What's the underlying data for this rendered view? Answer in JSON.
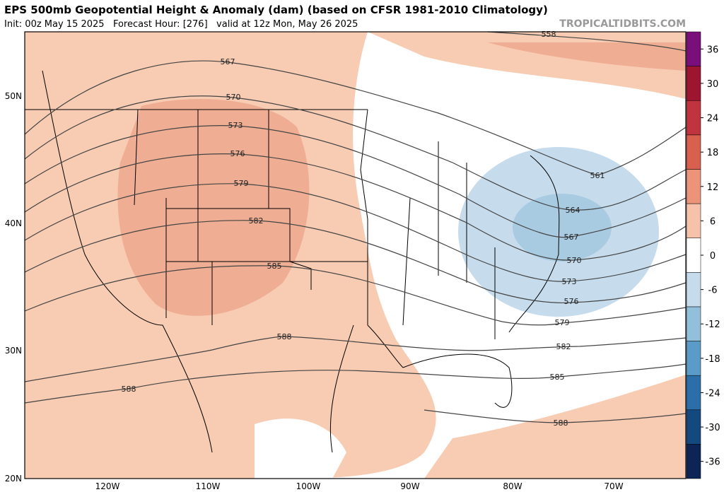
{
  "header": {
    "title": "EPS 500mb Geopotential Height & Anomaly (dam) (based on CFSR 1981-2010 Climatology)",
    "subtitle": "Init: 00z May 15 2025   Forecast Hour: [276]   valid at 12z Mon, May 26 2025",
    "watermark": "TROPICALTIDBITS.COM"
  },
  "map": {
    "lat_labels": [
      "50N",
      "40N",
      "30N",
      "20N"
    ],
    "lon_labels": [
      "120W",
      "110W",
      "100W",
      "90W",
      "80W",
      "70W"
    ],
    "contour_labels": [
      "558",
      "567",
      "570",
      "573",
      "576",
      "579",
      "582",
      "585",
      "588",
      "588",
      "561",
      "564",
      "567",
      "570",
      "573",
      "576",
      "579",
      "582",
      "585",
      "588"
    ]
  },
  "colorbar": {
    "levels": [
      -39,
      -33,
      -27,
      -21,
      -15,
      -9,
      -3,
      3,
      9,
      15,
      21,
      27,
      33,
      39
    ],
    "colors": [
      "#0c2555",
      "#13497f",
      "#2c6fa8",
      "#5a9bc8",
      "#92bfd9",
      "#c6dced",
      "#ffffff",
      "#f6c3aa",
      "#eb9479",
      "#d8604f",
      "#c0353d",
      "#9e1530",
      "#7a0e7a"
    ],
    "ticks": [
      36,
      30,
      24,
      18,
      12,
      6,
      0,
      -6,
      -12,
      -18,
      -24,
      -30,
      -36
    ]
  }
}
